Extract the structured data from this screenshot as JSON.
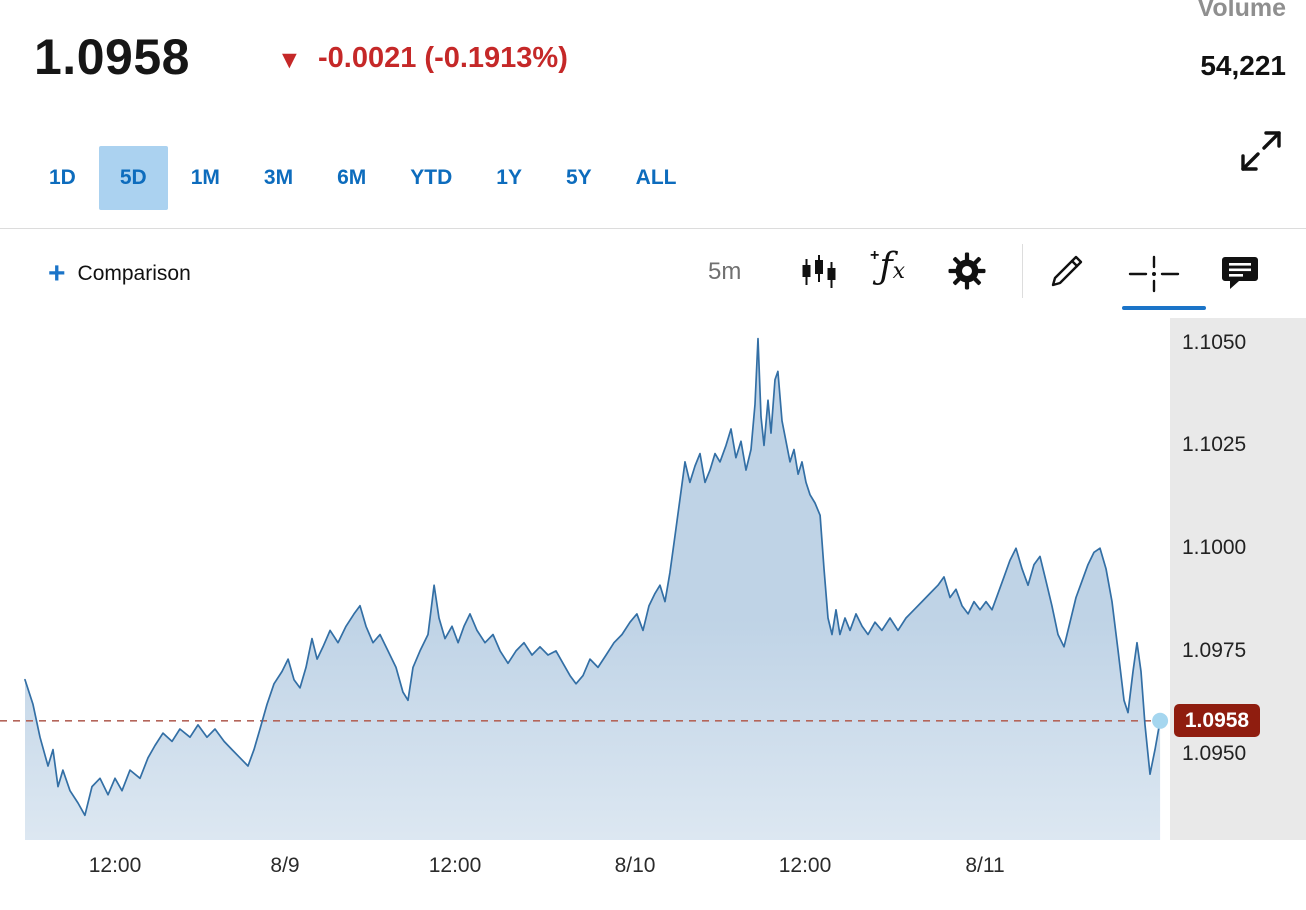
{
  "header": {
    "price": "1.0958",
    "down_triangle": "▼",
    "change": "-0.0021 (-0.1913%)",
    "direction": "down",
    "volume_label": "Volume",
    "volume_value": "54,221"
  },
  "range_tabs": {
    "items": [
      {
        "label": "1D",
        "active": false
      },
      {
        "label": "5D",
        "active": true
      },
      {
        "label": "1M",
        "active": false
      },
      {
        "label": "3M",
        "active": false
      },
      {
        "label": "6M",
        "active": false
      },
      {
        "label": "YTD",
        "active": false
      },
      {
        "label": "1Y",
        "active": false
      },
      {
        "label": "5Y",
        "active": false
      },
      {
        "label": "ALL",
        "active": false
      }
    ]
  },
  "toolbar": {
    "comparison_plus": "+",
    "comparison_label": "Comparison",
    "interval_label": "5m",
    "functions_glyph_plus": "+",
    "functions_glyph_f": "ƒ",
    "functions_glyph_x": "x",
    "icons": [
      "candlestick-chart-icon",
      "functions-icon",
      "settings-gear-icon",
      "draw-pencil-icon",
      "crosshair-icon",
      "annotation-icon",
      "fullscreen-expand-icon"
    ],
    "active_tool": "crosshair"
  },
  "colors": {
    "accent_blue": "#1b74c8",
    "tab_text_blue": "#0d6cbd",
    "tab_active_bg": "#abd2f0",
    "negative_red": "#c52828",
    "muted_gray": "#8f8f8f"
  },
  "chart_data": {
    "type": "area",
    "interval": "5m",
    "ylim": [
      1.0929,
      1.1056
    ],
    "grid": false,
    "legend": false,
    "last_price": 1.0958,
    "last_price_label": "1.0958",
    "y_ticks": [
      {
        "value": 1.105,
        "label": "1.1050"
      },
      {
        "value": 1.1025,
        "label": "1.1025"
      },
      {
        "value": 1.1,
        "label": "1.1000"
      },
      {
        "value": 1.0975,
        "label": "1.0975"
      },
      {
        "value": 1.095,
        "label": "1.0950"
      }
    ],
    "x_ticks": [
      {
        "pos": 0.098,
        "label": "12:00"
      },
      {
        "pos": 0.244,
        "label": "8/9"
      },
      {
        "pos": 0.389,
        "label": "12:00"
      },
      {
        "pos": 0.543,
        "label": "8/10"
      },
      {
        "pos": 0.688,
        "label": "12:00"
      },
      {
        "pos": 0.842,
        "label": "8/11"
      }
    ],
    "colors": {
      "line": "#336fa5",
      "fill_top": "#7fa7cd",
      "dashed_line": "#b4655a",
      "dot": "#a5d6ef",
      "badge_bg": "#8f1d0f",
      "badge_text": "#ffffff",
      "axis_panel": "#e9e9e9"
    },
    "points": [
      [
        0.0214,
        1.0968
      ],
      [
        0.0282,
        1.0962
      ],
      [
        0.0342,
        1.0954
      ],
      [
        0.041,
        1.0947
      ],
      [
        0.0453,
        1.0951
      ],
      [
        0.0496,
        1.0942
      ],
      [
        0.0538,
        1.0946
      ],
      [
        0.0598,
        1.0941
      ],
      [
        0.0667,
        1.0938
      ],
      [
        0.0726,
        1.0935
      ],
      [
        0.0786,
        1.0942
      ],
      [
        0.0855,
        1.0944
      ],
      [
        0.0923,
        1.094
      ],
      [
        0.0983,
        1.0944
      ],
      [
        0.1043,
        1.0941
      ],
      [
        0.1111,
        1.0946
      ],
      [
        0.1197,
        1.0944
      ],
      [
        0.1265,
        1.0949
      ],
      [
        0.1325,
        1.0952
      ],
      [
        0.1393,
        1.0955
      ],
      [
        0.147,
        1.0953
      ],
      [
        0.1538,
        1.0956
      ],
      [
        0.1624,
        1.0954
      ],
      [
        0.1692,
        1.0957
      ],
      [
        0.1769,
        1.0954
      ],
      [
        0.1838,
        1.0956
      ],
      [
        0.1915,
        1.0953
      ],
      [
        0.1983,
        1.0951
      ],
      [
        0.2051,
        1.0949
      ],
      [
        0.212,
        1.0947
      ],
      [
        0.2171,
        1.0951
      ],
      [
        0.2222,
        1.0956
      ],
      [
        0.2282,
        1.0962
      ],
      [
        0.2342,
        1.0967
      ],
      [
        0.241,
        1.097
      ],
      [
        0.2462,
        1.0973
      ],
      [
        0.2513,
        1.0968
      ],
      [
        0.2564,
        1.0966
      ],
      [
        0.2615,
        1.0971
      ],
      [
        0.2667,
        1.0978
      ],
      [
        0.271,
        1.0973
      ],
      [
        0.2761,
        1.0976
      ],
      [
        0.2821,
        1.098
      ],
      [
        0.2889,
        1.0977
      ],
      [
        0.2957,
        1.0981
      ],
      [
        0.3026,
        1.0984
      ],
      [
        0.3077,
        1.0986
      ],
      [
        0.3128,
        1.0981
      ],
      [
        0.3188,
        1.0977
      ],
      [
        0.3248,
        1.0979
      ],
      [
        0.3316,
        1.0975
      ],
      [
        0.3385,
        1.0971
      ],
      [
        0.3444,
        1.0965
      ],
      [
        0.3487,
        1.0963
      ],
      [
        0.353,
        1.0971
      ],
      [
        0.359,
        1.0975
      ],
      [
        0.3658,
        1.0979
      ],
      [
        0.371,
        1.0991
      ],
      [
        0.3752,
        1.0983
      ],
      [
        0.3803,
        1.0978
      ],
      [
        0.3863,
        1.0981
      ],
      [
        0.3915,
        1.0977
      ],
      [
        0.3966,
        1.0981
      ],
      [
        0.4017,
        1.0984
      ],
      [
        0.4077,
        1.098
      ],
      [
        0.4145,
        1.0977
      ],
      [
        0.4214,
        1.0979
      ],
      [
        0.4274,
        1.0975
      ],
      [
        0.4342,
        1.0972
      ],
      [
        0.441,
        1.0975
      ],
      [
        0.4479,
        1.0977
      ],
      [
        0.4547,
        1.0974
      ],
      [
        0.4615,
        1.0976
      ],
      [
        0.4684,
        1.0974
      ],
      [
        0.4752,
        1.0975
      ],
      [
        0.4812,
        1.0972
      ],
      [
        0.4872,
        1.0969
      ],
      [
        0.4923,
        1.0967
      ],
      [
        0.4983,
        1.0969
      ],
      [
        0.5043,
        1.0973
      ],
      [
        0.5111,
        1.0971
      ],
      [
        0.518,
        1.0974
      ],
      [
        0.5248,
        1.0977
      ],
      [
        0.5316,
        1.0979
      ],
      [
        0.5385,
        1.0982
      ],
      [
        0.5444,
        1.0984
      ],
      [
        0.5496,
        1.098
      ],
      [
        0.5547,
        1.0986
      ],
      [
        0.5598,
        1.0989
      ],
      [
        0.5641,
        1.0991
      ],
      [
        0.5684,
        1.0987
      ],
      [
        0.5726,
        1.0994
      ],
      [
        0.5769,
        1.1003
      ],
      [
        0.5812,
        1.1012
      ],
      [
        0.5855,
        1.1021
      ],
      [
        0.5897,
        1.1016
      ],
      [
        0.594,
        1.102
      ],
      [
        0.5983,
        1.1023
      ],
      [
        0.6026,
        1.1016
      ],
      [
        0.6068,
        1.1019
      ],
      [
        0.6111,
        1.1023
      ],
      [
        0.6154,
        1.1021
      ],
      [
        0.6205,
        1.1025
      ],
      [
        0.6248,
        1.1029
      ],
      [
        0.629,
        1.1022
      ],
      [
        0.6333,
        1.1026
      ],
      [
        0.6376,
        1.1019
      ],
      [
        0.6419,
        1.1024
      ],
      [
        0.6453,
        1.1035
      ],
      [
        0.6479,
        1.1051
      ],
      [
        0.6504,
        1.1032
      ],
      [
        0.653,
        1.1025
      ],
      [
        0.6564,
        1.1036
      ],
      [
        0.659,
        1.1028
      ],
      [
        0.6624,
        1.1041
      ],
      [
        0.6649,
        1.1043
      ],
      [
        0.6684,
        1.1031
      ],
      [
        0.6718,
        1.1026
      ],
      [
        0.6752,
        1.1021
      ],
      [
        0.6786,
        1.1024
      ],
      [
        0.6821,
        1.1018
      ],
      [
        0.6855,
        1.1021
      ],
      [
        0.6889,
        1.1016
      ],
      [
        0.6923,
        1.1013
      ],
      [
        0.6966,
        1.1011
      ],
      [
        0.7009,
        1.1008
      ],
      [
        0.7043,
        1.0995
      ],
      [
        0.7077,
        1.0983
      ],
      [
        0.7111,
        1.0979
      ],
      [
        0.7145,
        1.0985
      ],
      [
        0.7179,
        1.0979
      ],
      [
        0.7222,
        1.0983
      ],
      [
        0.7265,
        1.098
      ],
      [
        0.7316,
        1.0984
      ],
      [
        0.7368,
        1.0981
      ],
      [
        0.7419,
        1.0979
      ],
      [
        0.7479,
        1.0982
      ],
      [
        0.7538,
        1.098
      ],
      [
        0.7607,
        1.0983
      ],
      [
        0.7675,
        1.098
      ],
      [
        0.7744,
        1.0983
      ],
      [
        0.7812,
        1.0985
      ],
      [
        0.788,
        1.0987
      ],
      [
        0.7949,
        1.0989
      ],
      [
        0.8017,
        1.0991
      ],
      [
        0.8068,
        1.0993
      ],
      [
        0.812,
        1.0988
      ],
      [
        0.8171,
        1.099
      ],
      [
        0.8222,
        1.0986
      ],
      [
        0.8274,
        1.0984
      ],
      [
        0.8325,
        1.0987
      ],
      [
        0.8376,
        1.0985
      ],
      [
        0.8427,
        1.0987
      ],
      [
        0.8479,
        1.0985
      ],
      [
        0.853,
        1.0989
      ],
      [
        0.8581,
        1.0993
      ],
      [
        0.8632,
        1.0997
      ],
      [
        0.8684,
        1.1
      ],
      [
        0.8735,
        1.0995
      ],
      [
        0.8786,
        1.0991
      ],
      [
        0.8838,
        1.0996
      ],
      [
        0.8889,
        1.0998
      ],
      [
        0.894,
        1.0992
      ],
      [
        0.8991,
        1.0986
      ],
      [
        0.9043,
        1.0979
      ],
      [
        0.9094,
        1.0976
      ],
      [
        0.9145,
        1.0982
      ],
      [
        0.9197,
        1.0988
      ],
      [
        0.9248,
        1.0992
      ],
      [
        0.9299,
        1.0996
      ],
      [
        0.935,
        1.0999
      ],
      [
        0.9402,
        1.1
      ],
      [
        0.9453,
        1.0995
      ],
      [
        0.9504,
        1.0987
      ],
      [
        0.9556,
        1.0975
      ],
      [
        0.9607,
        1.0963
      ],
      [
        0.9641,
        1.096
      ],
      [
        0.9684,
        1.097
      ],
      [
        0.9718,
        1.0977
      ],
      [
        0.9752,
        1.097
      ],
      [
        0.9786,
        1.0957
      ],
      [
        0.9829,
        1.0945
      ],
      [
        0.9872,
        1.0951
      ],
      [
        0.9915,
        1.0958
      ]
    ]
  }
}
